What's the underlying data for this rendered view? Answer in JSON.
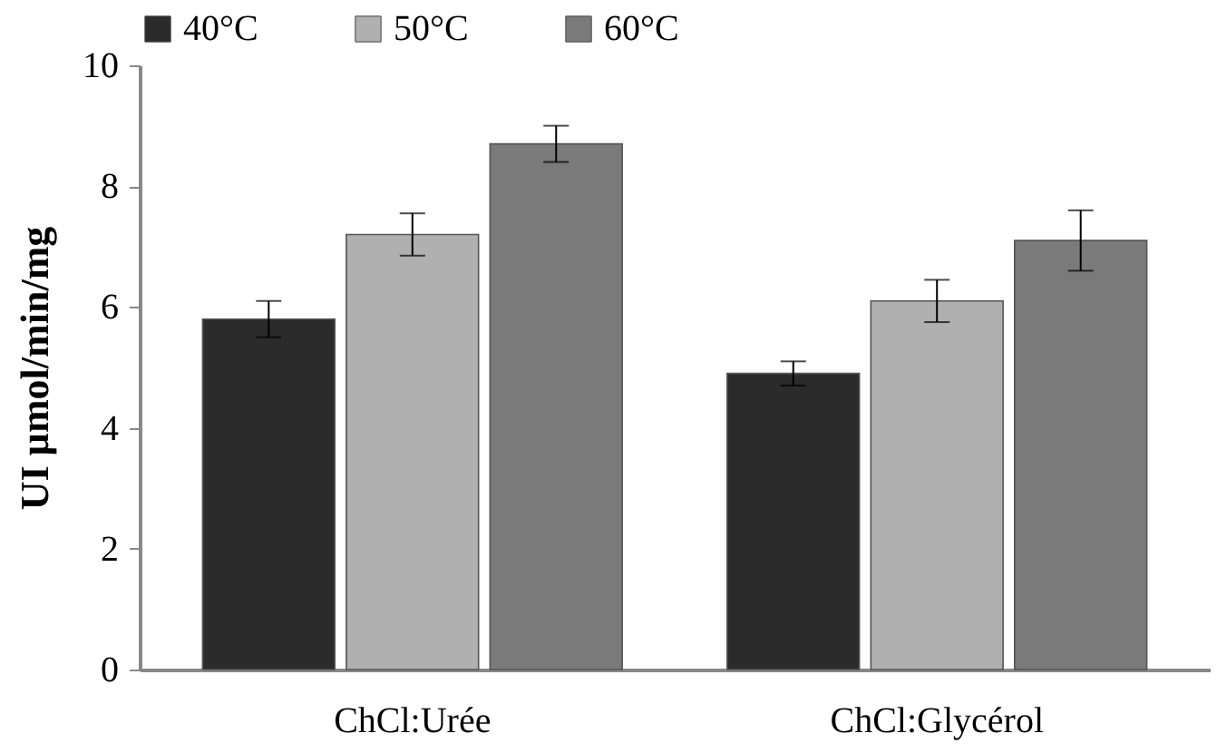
{
  "chart_data": {
    "type": "bar",
    "ylabel": "UI µmol/min/mg",
    "categories": [
      "ChCl:Urée",
      "ChCl:Glycérol"
    ],
    "series": [
      {
        "name": "40°C",
        "color": "#2b2b2b",
        "values": [
          5.8,
          4.9
        ],
        "errors": [
          0.3,
          0.2
        ]
      },
      {
        "name": "50°C",
        "color": "#b0b0b0",
        "values": [
          7.2,
          6.1
        ],
        "errors": [
          0.35,
          0.35
        ]
      },
      {
        "name": "60°C",
        "color": "#7a7a7a",
        "values": [
          8.7,
          7.1
        ],
        "errors": [
          0.3,
          0.5
        ]
      }
    ],
    "ylim": [
      0,
      10
    ],
    "yticks": [
      0,
      2,
      4,
      6,
      8,
      10
    ],
    "legend": "top",
    "grid": false
  }
}
